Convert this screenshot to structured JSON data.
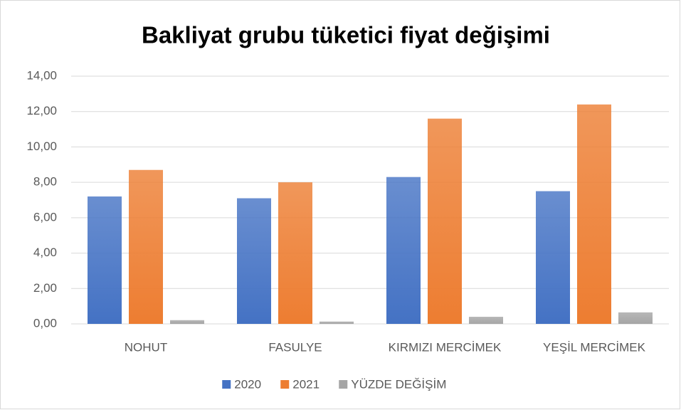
{
  "chart_data": {
    "type": "bar",
    "title": "Bakliyat grubu tüketici fiyat değişimi",
    "categories": [
      "NOHUT",
      "FASULYE",
      "KIRMIZI MERCİMEK",
      "YEŞİL MERCİMEK"
    ],
    "series": [
      {
        "name": "2020",
        "color": "#4472c4",
        "values": [
          7.2,
          7.1,
          8.3,
          7.5
        ]
      },
      {
        "name": "2021",
        "color": "#ed7d31",
        "values": [
          8.7,
          8.0,
          11.6,
          12.4
        ]
      },
      {
        "name": "YÜZDE DEĞİŞİM",
        "color": "#a5a5a5",
        "values": [
          0.21,
          0.13,
          0.4,
          0.65
        ]
      }
    ],
    "ylim": [
      0,
      14
    ],
    "yticks": [
      {
        "value": 0,
        "label": "0,00"
      },
      {
        "value": 2,
        "label": "2,00"
      },
      {
        "value": 4,
        "label": "4,00"
      },
      {
        "value": 6,
        "label": "6,00"
      },
      {
        "value": 8,
        "label": "8,00"
      },
      {
        "value": 10,
        "label": "10,00"
      },
      {
        "value": 12,
        "label": "12,00"
      },
      {
        "value": 14,
        "label": "14,00"
      }
    ],
    "grid": true,
    "legend": "bottom"
  }
}
